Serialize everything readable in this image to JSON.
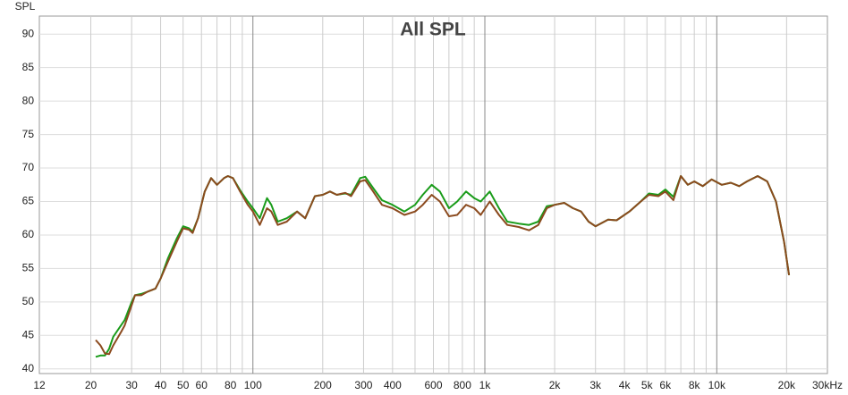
{
  "chart_data": {
    "type": "line",
    "title": "All SPL",
    "y_label": "SPL",
    "log_x": true,
    "grid": true,
    "xlim": [
      12,
      30000
    ],
    "ylim": [
      39.3,
      92.7
    ],
    "xticks": [
      12,
      20,
      30,
      40,
      50,
      60,
      80,
      {
        "value": 100,
        "label": "100"
      },
      200,
      300,
      400,
      600,
      800,
      {
        "value": 1000,
        "label": "1k"
      },
      {
        "value": 2000,
        "label": "2k"
      },
      {
        "value": 3000,
        "label": "3k"
      },
      {
        "value": 4000,
        "label": "4k"
      },
      {
        "value": 5000,
        "label": "5k"
      },
      {
        "value": 6000,
        "label": "6k"
      },
      {
        "value": 8000,
        "label": "8k"
      },
      {
        "value": 10000,
        "label": "10k"
      },
      {
        "value": 20000,
        "label": "20k"
      },
      {
        "value": 30000,
        "label": "30kHz"
      }
    ],
    "xgrid_minor": [
      70,
      90,
      500,
      700,
      900,
      7000,
      9000
    ],
    "yticks": [
      40,
      45,
      50,
      55,
      60,
      65,
      70,
      75,
      80,
      85,
      90
    ],
    "x": [
      21,
      22,
      23,
      24,
      25,
      27,
      28,
      30,
      31,
      33,
      35,
      38,
      40,
      43,
      47,
      50,
      53,
      55,
      58,
      62,
      66,
      70,
      75,
      78,
      82,
      88,
      95,
      100,
      107,
      115,
      120,
      128,
      140,
      155,
      168,
      185,
      200,
      215,
      230,
      250,
      265,
      290,
      305,
      330,
      360,
      400,
      450,
      500,
      540,
      590,
      640,
      700,
      760,
      830,
      900,
      960,
      1050,
      1150,
      1250,
      1400,
      1550,
      1700,
      1850,
      2000,
      2200,
      2400,
      2600,
      2800,
      3000,
      3400,
      3700,
      4200,
      4700,
      5100,
      5600,
      6000,
      6500,
      7000,
      7500,
      8000,
      8700,
      9500,
      10500,
      11500,
      12500,
      13500,
      15000,
      16500,
      18000,
      19500,
      20500
    ],
    "series": [
      {
        "name": "Green",
        "color": "#1a9c1a",
        "values": [
          41.8,
          42.0,
          42.0,
          43.0,
          44.8,
          46.5,
          47.3,
          50.0,
          51.0,
          51.2,
          51.5,
          52.0,
          53.5,
          56.5,
          59.5,
          61.3,
          61.0,
          60.5,
          62.5,
          66.5,
          68.5,
          67.5,
          68.5,
          68.8,
          68.5,
          66.7,
          65.0,
          64.0,
          62.5,
          65.5,
          64.5,
          62.0,
          62.5,
          63.5,
          62.5,
          65.8,
          66.0,
          66.5,
          66.0,
          66.2,
          66.0,
          68.5,
          68.7,
          67.0,
          65.2,
          64.5,
          63.5,
          64.5,
          66.0,
          67.5,
          66.5,
          64.0,
          65.0,
          66.5,
          65.5,
          65.0,
          66.5,
          64.0,
          62.0,
          61.7,
          61.5,
          62.0,
          64.3,
          64.5,
          64.8,
          64.0,
          63.5,
          62.0,
          61.3,
          62.3,
          62.2,
          63.5,
          65.0,
          66.2,
          66.0,
          66.8,
          65.7,
          68.8,
          67.5,
          68.0,
          67.3,
          68.3,
          67.5,
          67.8,
          67.3,
          68.0,
          68.8,
          68.0,
          65.0,
          59.0,
          54.0
        ]
      },
      {
        "name": "Brown",
        "color": "#8b4a1e",
        "values": [
          44.3,
          43.5,
          42.3,
          42.2,
          43.5,
          45.5,
          46.5,
          49.5,
          51.0,
          51.0,
          51.5,
          52.0,
          53.5,
          56.0,
          59.0,
          61.0,
          60.8,
          60.3,
          62.5,
          66.5,
          68.5,
          67.5,
          68.5,
          68.8,
          68.5,
          66.5,
          64.5,
          63.5,
          61.5,
          64.0,
          63.5,
          61.5,
          62.0,
          63.5,
          62.5,
          65.8,
          66.0,
          66.5,
          66.0,
          66.3,
          65.8,
          68.0,
          68.2,
          66.5,
          64.5,
          64.0,
          63.0,
          63.5,
          64.5,
          66.0,
          65.0,
          62.8,
          63.0,
          64.5,
          64.0,
          63.0,
          65.0,
          63.0,
          61.5,
          61.2,
          60.7,
          61.5,
          64.0,
          64.5,
          64.8,
          64.0,
          63.5,
          62.0,
          61.3,
          62.3,
          62.2,
          63.5,
          65.0,
          66.0,
          65.8,
          66.5,
          65.2,
          68.8,
          67.5,
          68.0,
          67.3,
          68.3,
          67.5,
          67.8,
          67.3,
          68.0,
          68.8,
          68.0,
          65.0,
          59.0,
          54.0
        ]
      }
    ]
  }
}
